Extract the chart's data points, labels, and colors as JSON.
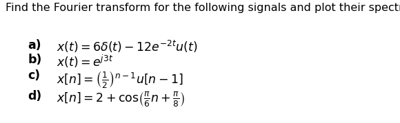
{
  "title": "Find the Fourier transform for the following signals and plot their spectra.",
  "items": [
    {
      "label": "a)",
      "expr": "$x(t) = 6\\delta(t) - 12e^{-2t}u(t)$"
    },
    {
      "label": "b)",
      "expr": "$x(t) = e^{j3t}$"
    },
    {
      "label": "c)",
      "expr": "$x[n] = \\left(\\frac{1}{2}\\right)^{n-1} u[n-1]$"
    },
    {
      "label": "d)",
      "expr": "$x[n] = 2 + \\cos\\!\\left(\\frac{\\pi}{6}n + \\frac{\\pi}{8}\\right)$"
    }
  ],
  "bg_color": "#ffffff",
  "title_fontsize": 11.5,
  "label_fontsize": 12.5,
  "expr_fontsize": 12.5,
  "title_color": "#000000",
  "text_color": "#000000"
}
